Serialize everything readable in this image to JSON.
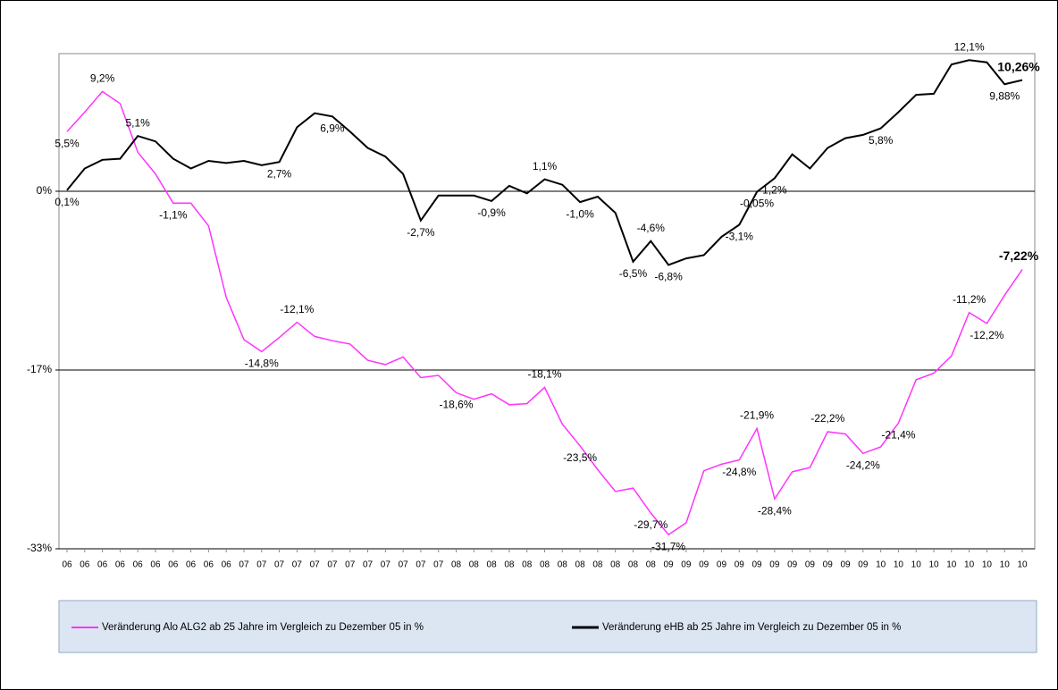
{
  "chart_data": {
    "type": "line",
    "categories": [
      "06",
      "06",
      "06",
      "06",
      "06",
      "06",
      "06",
      "06",
      "06",
      "06",
      "07",
      "07",
      "07",
      "07",
      "07",
      "07",
      "07",
      "07",
      "07",
      "07",
      "07",
      "07",
      "08",
      "08",
      "08",
      "08",
      "08",
      "08",
      "08",
      "08",
      "08",
      "08",
      "08",
      "08",
      "09",
      "09",
      "09",
      "09",
      "09",
      "09",
      "09",
      "09",
      "09",
      "09",
      "09",
      "09",
      "10",
      "10",
      "10",
      "10",
      "10",
      "10",
      "10",
      "10",
      "10"
    ],
    "ylim": [
      -33,
      12.7
    ],
    "yticks": [
      {
        "value": 0,
        "label": "0%"
      },
      {
        "value": -16.5,
        "label": "-17%"
      },
      {
        "value": -33,
        "label": "-33%"
      }
    ],
    "grid": true,
    "legend": "bottom",
    "series": [
      {
        "name": "Veränderung Alo ALG2 ab 25 Jahre im Vergleich zu Dezember 05 in %",
        "color": "#ff33ff",
        "values": [
          5.5,
          7.3,
          9.2,
          8.1,
          3.6,
          1.6,
          -1.1,
          -1.1,
          -3.2,
          -9.8,
          -13.7,
          -14.8,
          -13.5,
          -12.1,
          -13.4,
          -13.8,
          -14.1,
          -15.6,
          -16.0,
          -15.3,
          -17.2,
          -17.0,
          -18.6,
          -19.2,
          -18.7,
          -19.7,
          -19.6,
          -18.1,
          -21.5,
          -23.5,
          -25.7,
          -27.7,
          -27.4,
          -29.7,
          -31.7,
          -30.6,
          -25.8,
          -25.2,
          -24.8,
          -21.9,
          -28.4,
          -25.9,
          -25.5,
          -22.2,
          -22.4,
          -24.2,
          -23.6,
          -21.4,
          -17.4,
          -16.8,
          -15.2,
          -11.2,
          -12.2,
          -9.6,
          -7.22
        ],
        "value_labels": [
          "5,5%",
          null,
          "9,2%",
          null,
          null,
          null,
          "-1,1%",
          null,
          null,
          null,
          null,
          "-14,8%",
          null,
          "-12,1%",
          null,
          null,
          null,
          null,
          null,
          null,
          null,
          null,
          "-18,6%",
          null,
          null,
          null,
          null,
          "-18,1%",
          null,
          "-23,5%",
          null,
          null,
          null,
          "-29,7%",
          "-31,7%",
          null,
          null,
          null,
          "-24,8%",
          "-21,9%",
          "-28,4%",
          null,
          null,
          "-22,2%",
          null,
          "-24,2%",
          null,
          "-21,4%",
          null,
          null,
          null,
          "-11,2%",
          "-12,2%",
          null,
          "-7,22%"
        ]
      },
      {
        "name": "Veränderung eHB ab 25 Jahre im Vergleich zu Dezember 05 in %",
        "color": "#000000",
        "values": [
          0.1,
          2.1,
          2.9,
          3.0,
          5.1,
          4.6,
          3.0,
          2.1,
          2.8,
          2.6,
          2.8,
          2.4,
          2.7,
          5.9,
          7.2,
          6.9,
          5.5,
          4.0,
          3.2,
          1.6,
          -2.7,
          -0.4,
          -0.4,
          -0.4,
          -0.9,
          0.5,
          -0.2,
          1.1,
          0.6,
          -1.0,
          -0.5,
          -2.0,
          -6.5,
          -4.6,
          -6.8,
          -6.2,
          -5.9,
          -4.2,
          -3.1,
          -0.05,
          1.2,
          3.4,
          2.1,
          4.0,
          4.9,
          5.2,
          5.8,
          7.3,
          8.9,
          9.0,
          11.7,
          12.1,
          11.9,
          9.88,
          10.26
        ],
        "value_labels": [
          "0,1%",
          null,
          null,
          null,
          "5,1%",
          null,
          null,
          null,
          null,
          null,
          null,
          null,
          "2,7%",
          null,
          null,
          "6,9%",
          null,
          null,
          null,
          null,
          "-2,7%",
          null,
          null,
          null,
          "-0,9%",
          null,
          null,
          "1,1%",
          null,
          "-1,0%",
          null,
          null,
          "-6,5%",
          "-4,6%",
          "-6,8%",
          null,
          null,
          null,
          "-3,1%",
          "-0,05%",
          "1,2%",
          null,
          null,
          null,
          null,
          null,
          "5,8%",
          null,
          null,
          null,
          null,
          "12,1%",
          null,
          "9,88%",
          "10,26%"
        ]
      }
    ]
  }
}
